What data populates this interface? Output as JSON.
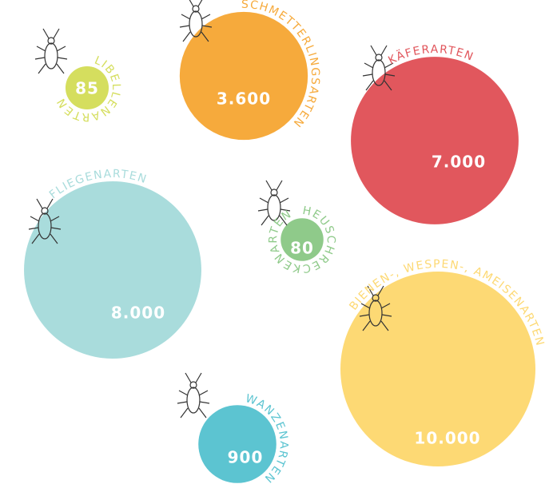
{
  "chart_data": {
    "type": "bubble",
    "categories": [
      "LIBELLENARTEN",
      "SCHMETTERLINGSARTEN",
      "KÄFERARTEN",
      "FLIEGENARTEN",
      "HEUSCHRECKENARTEN",
      "BIENEN-, WESPEN-, AMEISENARTEN",
      "WANZENARTEN"
    ],
    "values": [
      85,
      3600,
      7000,
      8000,
      80,
      10000,
      900
    ],
    "value_labels": [
      "85",
      "3.600",
      "7.000",
      "8.000",
      "80",
      "10.000",
      "900"
    ],
    "colors": [
      "#d5de5e",
      "#f6aa3c",
      "#e1575d",
      "#a9dcdc",
      "#8fca8a",
      "#fdd974",
      "#5cc4d1"
    ]
  }
}
